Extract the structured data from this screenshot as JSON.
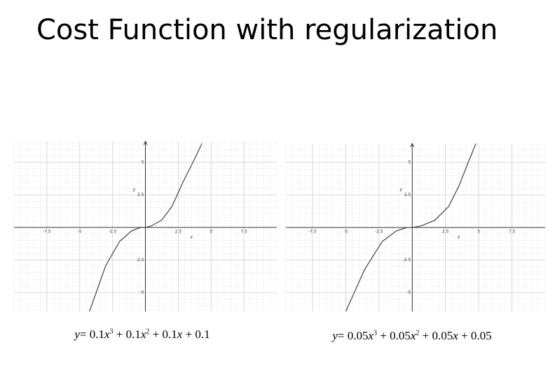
{
  "title": "Cost Function with regularization",
  "chart_data": [
    {
      "type": "line",
      "x_label": "x",
      "y_label": "y",
      "xlim": [
        -10,
        10
      ],
      "ylim": [
        -6.45,
        6.6
      ],
      "xticks": [
        -7.5,
        -5,
        -2.5,
        2.5,
        5,
        7.5
      ],
      "yticks": [
        -5,
        -2.5,
        2.5,
        5
      ],
      "grid": true,
      "x": [
        -4.26,
        -3.03,
        -1.97,
        -1.06,
        -0.37,
        0,
        0.43,
        1.22,
        2.02,
        2.82,
        3.62,
        4.31
      ],
      "series": [
        {
          "color": "#444444",
          "values": [
            -6.45,
            -2.96,
            -1.08,
            -0.27,
            0,
            0,
            0.11,
            0.54,
            1.61,
            3.39,
            5,
            6.45
          ]
        }
      ],
      "caption": [
        "y",
        "= 0.1",
        "x",
        "3",
        " + 0.1",
        "x",
        "2",
        " + 0.1",
        "x",
        " + 0.1"
      ]
    },
    {
      "type": "line",
      "x_label": "x",
      "y_label": "y",
      "xlim": [
        -9.5,
        10
      ],
      "ylim": [
        -6.45,
        6.45
      ],
      "xticks": [
        -7.5,
        -5,
        -2.5,
        2.5,
        5,
        7.5
      ],
      "yticks": [
        -5,
        -2.5,
        2.5,
        5
      ],
      "grid": true,
      "x": [
        -5,
        -3.58,
        -2.26,
        -1.21,
        -0.42,
        0,
        0.63,
        1.68,
        2.74,
        3.53,
        4.21,
        4.79
      ],
      "series": [
        {
          "color": "#444444",
          "values": [
            -6.45,
            -3.23,
            -1.08,
            -0.27,
            0,
            0,
            0.11,
            0.54,
            1.61,
            3.23,
            5,
            6.45
          ]
        }
      ],
      "caption": [
        "y",
        "= 0.05",
        "x",
        "3",
        " + 0.05",
        "x",
        "2",
        " + 0.05",
        "x",
        " + 0.05"
      ]
    }
  ]
}
